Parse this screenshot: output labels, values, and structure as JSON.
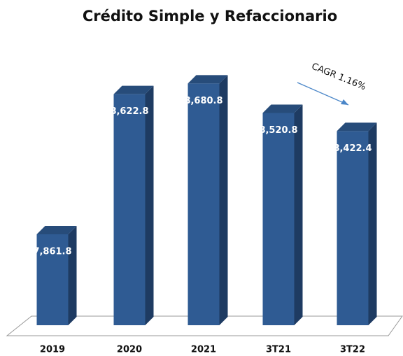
{
  "chart_data": {
    "type": "bar",
    "title": "Crédito Simple y Refaccionario",
    "categories": [
      "2019",
      "2020",
      "2021",
      "3T21",
      "3T22"
    ],
    "values": [
      7861.8,
      8622.8,
      8680.8,
      8520.8,
      8422.4
    ],
    "value_labels": [
      "7,861.8",
      "8,622.8",
      "8,680.8",
      "8,520.8",
      "8,422.4"
    ],
    "color": "#2f5b93",
    "ylim": [
      7368,
      8800
    ],
    "annotation": "CAGR  1.16%"
  }
}
